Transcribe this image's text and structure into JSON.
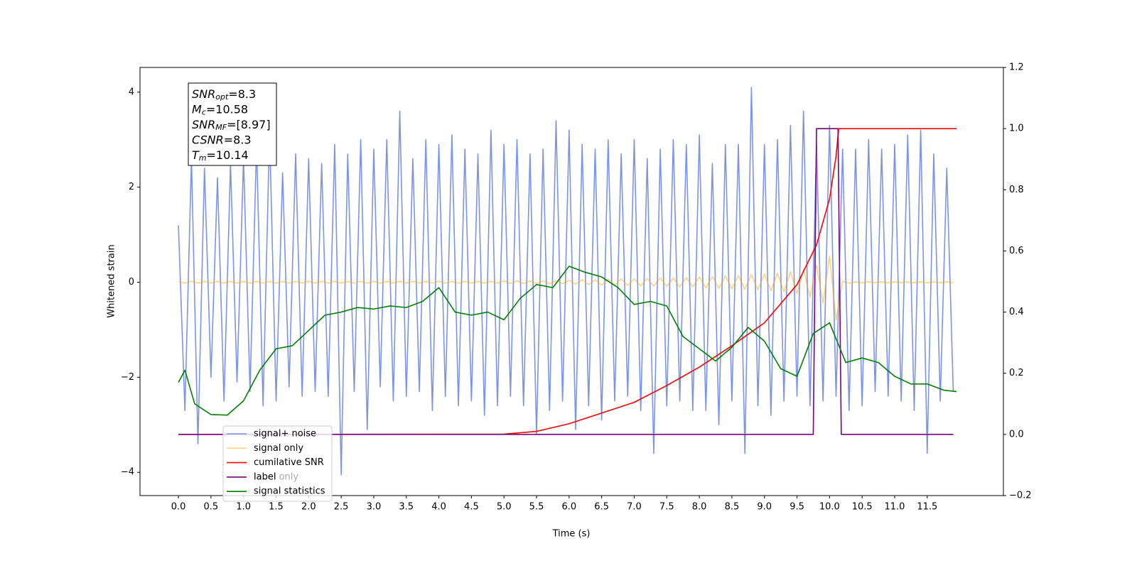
{
  "chart_data": {
    "type": "line",
    "xlabel": "Time (s)",
    "ylabel": "Whitened strain",
    "xlim": [
      -0.59,
      12.67
    ],
    "ylim": [
      -4.49,
      4.52
    ],
    "y2lim": [
      -0.2,
      1.2
    ],
    "xticks": [
      {
        "value": 0,
        "label": "0.0"
      },
      0.5,
      {
        "value": 1,
        "label": "1.0"
      },
      1.5,
      {
        "value": 2,
        "label": "2.0"
      },
      2.5,
      {
        "value": 3,
        "label": "3.0"
      },
      3.5,
      {
        "value": 4,
        "label": "4.0"
      },
      4.5,
      {
        "value": 5,
        "label": "5.0"
      },
      5.5,
      {
        "value": 6,
        "label": "6.0"
      },
      6.5,
      {
        "value": 7,
        "label": "7.0"
      },
      7.5,
      {
        "value": 8,
        "label": "8.0"
      },
      8.5,
      {
        "value": 9,
        "label": "9.0"
      },
      9.5,
      {
        "value": 10,
        "label": "10.0"
      },
      10.5,
      {
        "value": 11,
        "label": "11.0"
      },
      11.5
    ],
    "yticks": [
      {
        "value": -4,
        "label": "−4"
      },
      {
        "value": -2,
        "label": "−2"
      },
      0,
      2,
      4
    ],
    "y2ticks": [
      {
        "value": -0.2,
        "label": "−0.2"
      },
      {
        "value": 0,
        "label": "0.0"
      },
      0.2,
      0.4,
      0.6,
      0.8,
      {
        "value": 1,
        "label": "1.0"
      },
      1.2
    ],
    "legend_loc": "lower left",
    "annotations": [
      "label only"
    ],
    "textbox": [
      {
        "main": "SNR",
        "sub": "opt",
        "rest": "=8.3"
      },
      {
        "main": "M",
        "sub": "c",
        "rest": "=10.58"
      },
      {
        "main": "SNR",
        "sub": "MF",
        "rest": "=[8.97]"
      },
      {
        "main": "CSNR",
        "sub": null,
        "rest": "=8.3"
      },
      {
        "main": "T",
        "sub": "m",
        "rest": "=10.14"
      }
    ],
    "series": [
      {
        "name": "signal+ noise",
        "color": "#6d88e6",
        "alpha": 0.9,
        "x": [
          0,
          0.1,
          0.2,
          0.3,
          0.4,
          0.5,
          0.6,
          0.7,
          0.8,
          0.9,
          1,
          1.1,
          1.2,
          1.3,
          1.4,
          1.5,
          1.6,
          1.7,
          1.8,
          1.9,
          2,
          2.1,
          2.2,
          2.3,
          2.4,
          2.5,
          2.6,
          2.7,
          2.8,
          2.9,
          3,
          3.1,
          3.2,
          3.3,
          3.4,
          3.5,
          3.6,
          3.7,
          3.8,
          3.9,
          4,
          4.1,
          4.2,
          4.3,
          4.4,
          4.5,
          4.6,
          4.7,
          4.8,
          4.9,
          5,
          5.1,
          5.2,
          5.3,
          5.4,
          5.5,
          5.6,
          5.7,
          5.8,
          5.9,
          6,
          6.1,
          6.2,
          6.3,
          6.4,
          6.5,
          6.6,
          6.7,
          6.8,
          6.9,
          7,
          7.1,
          7.2,
          7.3,
          7.4,
          7.5,
          7.6,
          7.7,
          7.8,
          7.9,
          8,
          8.1,
          8.2,
          8.3,
          8.4,
          8.5,
          8.6,
          8.7,
          8.8,
          8.9,
          9,
          9.1,
          9.2,
          9.3,
          9.4,
          9.5,
          9.6,
          9.7,
          9.8,
          9.9,
          10,
          10.1,
          10.2,
          10.3,
          10.4,
          10.5,
          10.6,
          10.7,
          10.8,
          10.9,
          11,
          11.1,
          11.2,
          11.3,
          11.4,
          11.5,
          11.6,
          11.7,
          11.8,
          11.9
        ],
        "values": [
          1.2,
          -2.7,
          2.6,
          -3.4,
          2.4,
          -2.0,
          2.2,
          -2.5,
          2.5,
          -2.1,
          2.6,
          -2.3,
          2.9,
          -2.6,
          3.2,
          -2.5,
          2.3,
          -2.2,
          2.7,
          -2.4,
          2.6,
          -2.3,
          2.5,
          -2.4,
          2.9,
          -4.05,
          2.7,
          -2.3,
          3.0,
          -3.1,
          2.8,
          -2.2,
          3.0,
          -2.5,
          3.6,
          -2.4,
          2.6,
          -2.3,
          3.0,
          -2.7,
          2.9,
          -2.4,
          3.1,
          -2.6,
          2.8,
          -2.5,
          2.7,
          -2.8,
          3.2,
          -2.6,
          2.9,
          -2.4,
          3.0,
          -2.6,
          2.7,
          -3.2,
          2.8,
          -2.7,
          3.4,
          -2.5,
          3.2,
          -3.1,
          2.9,
          -2.6,
          2.8,
          -2.9,
          3.0,
          -2.5,
          2.7,
          -2.4,
          3.0,
          -2.7,
          2.6,
          -3.6,
          2.8,
          -2.6,
          3.0,
          -2.5,
          2.9,
          -2.7,
          3.1,
          -2.7,
          2.5,
          -3.0,
          2.9,
          -2.5,
          2.9,
          -3.6,
          4.1,
          -2.6,
          2.9,
          -2.8,
          3.0,
          -2.5,
          3.3,
          -2.4,
          3.6,
          -2.6,
          2.9,
          -2.5,
          3.3,
          -2.4,
          2.8,
          -2.7,
          2.8,
          -2.6,
          3.0,
          -2.3,
          2.8,
          -2.4,
          2.9,
          -2.5,
          3.1,
          -2.7,
          3.2,
          -3.6,
          2.7,
          -2.5,
          2.4,
          -2.3
        ]
      },
      {
        "name": "signal only",
        "color": "#ffa500",
        "alpha": 0.5,
        "x": [
          0,
          0.1,
          0.2,
          0.3,
          0.4,
          0.5,
          0.6,
          0.7,
          0.8,
          0.9,
          1,
          1.1,
          1.2,
          1.3,
          1.4,
          1.5,
          1.6,
          1.7,
          1.8,
          1.9,
          2,
          2.1,
          2.2,
          2.3,
          2.4,
          2.5,
          2.6,
          2.7,
          2.8,
          2.9,
          3,
          3.1,
          3.2,
          3.3,
          3.4,
          3.5,
          3.6,
          3.7,
          3.8,
          3.9,
          4,
          4.1,
          4.2,
          4.3,
          4.4,
          4.5,
          4.6,
          4.7,
          4.8,
          4.9,
          5,
          5.1,
          5.2,
          5.3,
          5.4,
          5.5,
          5.6,
          5.7,
          5.8,
          5.9,
          6,
          6.1,
          6.2,
          6.3,
          6.4,
          6.5,
          6.6,
          6.7,
          6.8,
          6.9,
          7,
          7.1,
          7.2,
          7.3,
          7.4,
          7.5,
          7.6,
          7.7,
          7.8,
          7.9,
          8,
          8.1,
          8.2,
          8.3,
          8.4,
          8.5,
          8.6,
          8.7,
          8.8,
          8.9,
          9,
          9.1,
          9.2,
          9.3,
          9.4,
          9.5,
          9.6,
          9.7,
          9.8,
          9.9,
          10,
          10.1,
          10.2,
          10.3,
          10.4,
          10.5,
          10.6,
          10.7,
          10.8,
          10.9,
          11,
          11.1,
          11.2,
          11.3,
          11.4,
          11.5,
          11.6,
          11.7,
          11.8,
          11.9
        ],
        "values": [
          0.02,
          -0.02,
          0.02,
          -0.02,
          0.02,
          -0.02,
          0.02,
          -0.02,
          0.02,
          -0.02,
          0.02,
          -0.02,
          0.02,
          -0.02,
          0.02,
          -0.02,
          0.02,
          -0.02,
          0.02,
          -0.02,
          0.02,
          -0.02,
          0.02,
          -0.02,
          0.02,
          -0.02,
          0.02,
          -0.02,
          0.02,
          -0.02,
          0.02,
          -0.02,
          0.02,
          -0.02,
          0.02,
          -0.02,
          0.02,
          -0.02,
          0.02,
          -0.02,
          0.02,
          -0.02,
          0.02,
          -0.02,
          0.02,
          -0.02,
          0.02,
          -0.02,
          0.02,
          -0.02,
          0.03,
          -0.03,
          0.03,
          -0.03,
          0.03,
          -0.03,
          0.03,
          -0.03,
          0.03,
          -0.03,
          0.04,
          -0.04,
          0.05,
          -0.05,
          0.05,
          -0.06,
          0.06,
          -0.06,
          0.07,
          -0.07,
          0.07,
          -0.08,
          0.08,
          -0.08,
          0.09,
          -0.09,
          0.09,
          -0.1,
          0.1,
          -0.1,
          0.11,
          -0.12,
          0.12,
          -0.13,
          0.13,
          -0.14,
          0.14,
          -0.15,
          0.16,
          -0.16,
          0.17,
          -0.18,
          0.19,
          -0.2,
          0.22,
          -0.24,
          0.27,
          -0.31,
          0.36,
          -0.44,
          0.55,
          -0.8,
          0.02,
          -0.02,
          0.01,
          -0.01,
          0.01,
          -0.01,
          0.01,
          -0.01,
          0.01,
          -0.01,
          0.01,
          -0.01,
          0.01,
          -0.01,
          0.01,
          -0.01,
          0.01,
          -0.01
        ]
      },
      {
        "name": "cumilative SNR",
        "color": "#ff0000",
        "axis": "y2",
        "x": [
          0,
          5,
          5.5,
          6,
          6.5,
          7,
          7.5,
          8,
          8.5,
          9,
          9.5,
          9.8,
          10,
          10.1,
          10.14,
          11.95
        ],
        "values": [
          0,
          0.001,
          0.01,
          0.035,
          0.07,
          0.105,
          0.16,
          0.22,
          0.29,
          0.365,
          0.49,
          0.62,
          0.77,
          0.91,
          1,
          1
        ]
      },
      {
        "name": "label",
        "color": "#7b007b",
        "axis": "y2",
        "x": [
          0,
          9.75,
          9.8,
          10.13,
          10.18,
          11.9
        ],
        "values": [
          0,
          0,
          1,
          1,
          0,
          0
        ]
      },
      {
        "name": "signal statistics",
        "color": "#008000",
        "axis": "y2",
        "x": [
          0,
          0.1,
          0.25,
          0.5,
          0.75,
          1,
          1.25,
          1.5,
          1.75,
          2,
          2.25,
          2.5,
          2.75,
          3,
          3.25,
          3.5,
          3.75,
          4,
          4.25,
          4.5,
          4.75,
          5,
          5.25,
          5.5,
          5.75,
          6,
          6.25,
          6.5,
          6.75,
          7,
          7.25,
          7.5,
          7.75,
          8,
          8.25,
          8.5,
          8.75,
          9,
          9.25,
          9.5,
          9.75,
          10,
          10.25,
          10.5,
          10.75,
          11,
          11.25,
          11.5,
          11.75,
          11.95
        ],
        "values": [
          0.17,
          0.21,
          0.1,
          0.065,
          0.063,
          0.11,
          0.21,
          0.28,
          0.29,
          0.34,
          0.39,
          0.4,
          0.415,
          0.41,
          0.42,
          0.415,
          0.435,
          0.48,
          0.4,
          0.39,
          0.4,
          0.375,
          0.445,
          0.49,
          0.48,
          0.55,
          0.53,
          0.515,
          0.48,
          0.425,
          0.435,
          0.42,
          0.32,
          0.28,
          0.24,
          0.285,
          0.35,
          0.305,
          0.215,
          0.19,
          0.33,
          0.365,
          0.235,
          0.25,
          0.235,
          0.19,
          0.165,
          0.165,
          0.145,
          0.14
        ]
      }
    ]
  }
}
